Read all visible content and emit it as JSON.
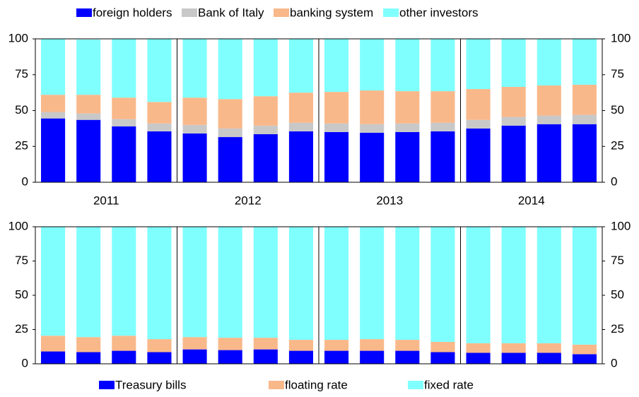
{
  "chart_data": [
    {
      "type": "stacked-bar",
      "categories": [
        null,
        null,
        null,
        null,
        null,
        null,
        null,
        null,
        null,
        null,
        null,
        null,
        null,
        null,
        null,
        null
      ],
      "groups": [
        "2011",
        "2012",
        "2013",
        "2014"
      ],
      "series": [
        {
          "name": "foreign holders",
          "color": "#0000ff",
          "values": [
            44.5,
            43.5,
            39,
            35.5,
            34,
            31.5,
            33.5,
            35.5,
            35,
            34.5,
            35,
            35.5,
            37.5,
            39.5,
            40.5,
            40.5
          ]
        },
        {
          "name": "Bank of Italy",
          "color": "#c8c8c8",
          "values": [
            4.5,
            4.5,
            5,
            5.5,
            6,
            6,
            6,
            6,
            6,
            6,
            6,
            6,
            6,
            6,
            6,
            6.5
          ]
        },
        {
          "name": "banking system",
          "color": "#f9b88a",
          "values": [
            12,
            13,
            15,
            15,
            19,
            20.5,
            20.5,
            21,
            22,
            23.5,
            22.5,
            22,
            21.5,
            21,
            21,
            21
          ]
        },
        {
          "name": "other investors",
          "color": "#80ffff",
          "values": [
            39,
            38.5,
            41,
            44,
            41,
            42,
            40,
            37.5,
            37,
            36,
            36.5,
            36.5,
            35,
            33.5,
            32.5,
            32
          ]
        }
      ],
      "ylim": [
        0,
        100
      ],
      "yticks": [
        0,
        25,
        50,
        75,
        100
      ]
    },
    {
      "type": "stacked-bar",
      "categories": [
        null,
        null,
        null,
        null,
        null,
        null,
        null,
        null,
        null,
        null,
        null,
        null,
        null,
        null,
        null,
        null
      ],
      "series": [
        {
          "name": "Treasury bills",
          "color": "#0000ff",
          "values": [
            9,
            8.5,
            9.5,
            8.5,
            10.5,
            10,
            10.5,
            9.5,
            9.5,
            9.5,
            9.5,
            8.5,
            8,
            8,
            8,
            7
          ]
        },
        {
          "name": "floating rate",
          "color": "#f9b88a",
          "values": [
            11.5,
            11,
            11,
            9.5,
            9,
            9,
            8.5,
            8,
            8,
            8.5,
            8,
            7.5,
            7,
            7,
            7,
            7
          ]
        },
        {
          "name": "fixed rate",
          "color": "#80ffff",
          "values": [
            79.5,
            80.5,
            79.5,
            82,
            80.5,
            81,
            81,
            82.5,
            82.5,
            82,
            82.5,
            84,
            85,
            85,
            85,
            86
          ]
        }
      ],
      "ylim": [
        0,
        100
      ],
      "yticks": [
        0,
        25,
        50,
        75,
        100
      ]
    }
  ]
}
